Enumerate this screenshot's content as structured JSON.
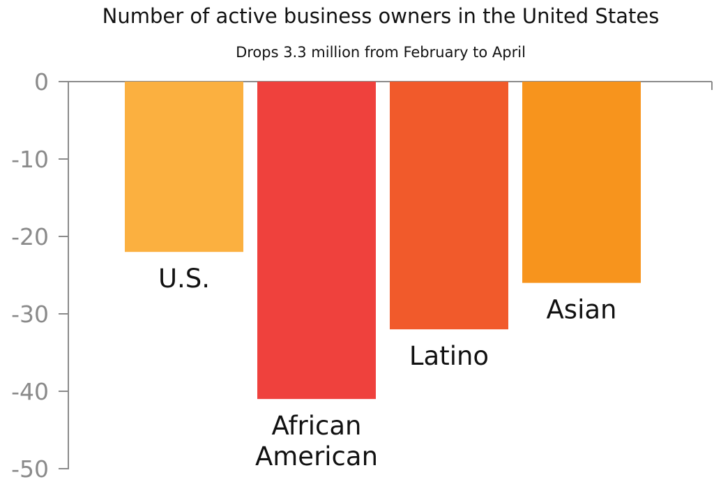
{
  "chart_data": {
    "type": "bar",
    "title": "Number of active business owners in the United States",
    "subtitle": "Drops 3.3 million from February to April",
    "categories": [
      "U.S.",
      "African American",
      "Latino",
      "Asian"
    ],
    "category_label_lines": [
      [
        "U.S."
      ],
      [
        "African",
        "American"
      ],
      [
        "Latino"
      ],
      [
        "Asian"
      ]
    ],
    "values": [
      -22,
      -41,
      -32,
      -26
    ],
    "colors": [
      "#fbb040",
      "#ef413d",
      "#f15a2b",
      "#f7941d"
    ],
    "ylim": [
      -50,
      0
    ],
    "yticks": [
      0,
      -10,
      -20,
      -30,
      -40,
      -50
    ],
    "ytick_labels": [
      "0",
      "-10",
      "-20",
      "-30",
      "-40",
      "-50"
    ],
    "xlabel": "",
    "ylabel": "",
    "grid": false,
    "legend": "none"
  }
}
